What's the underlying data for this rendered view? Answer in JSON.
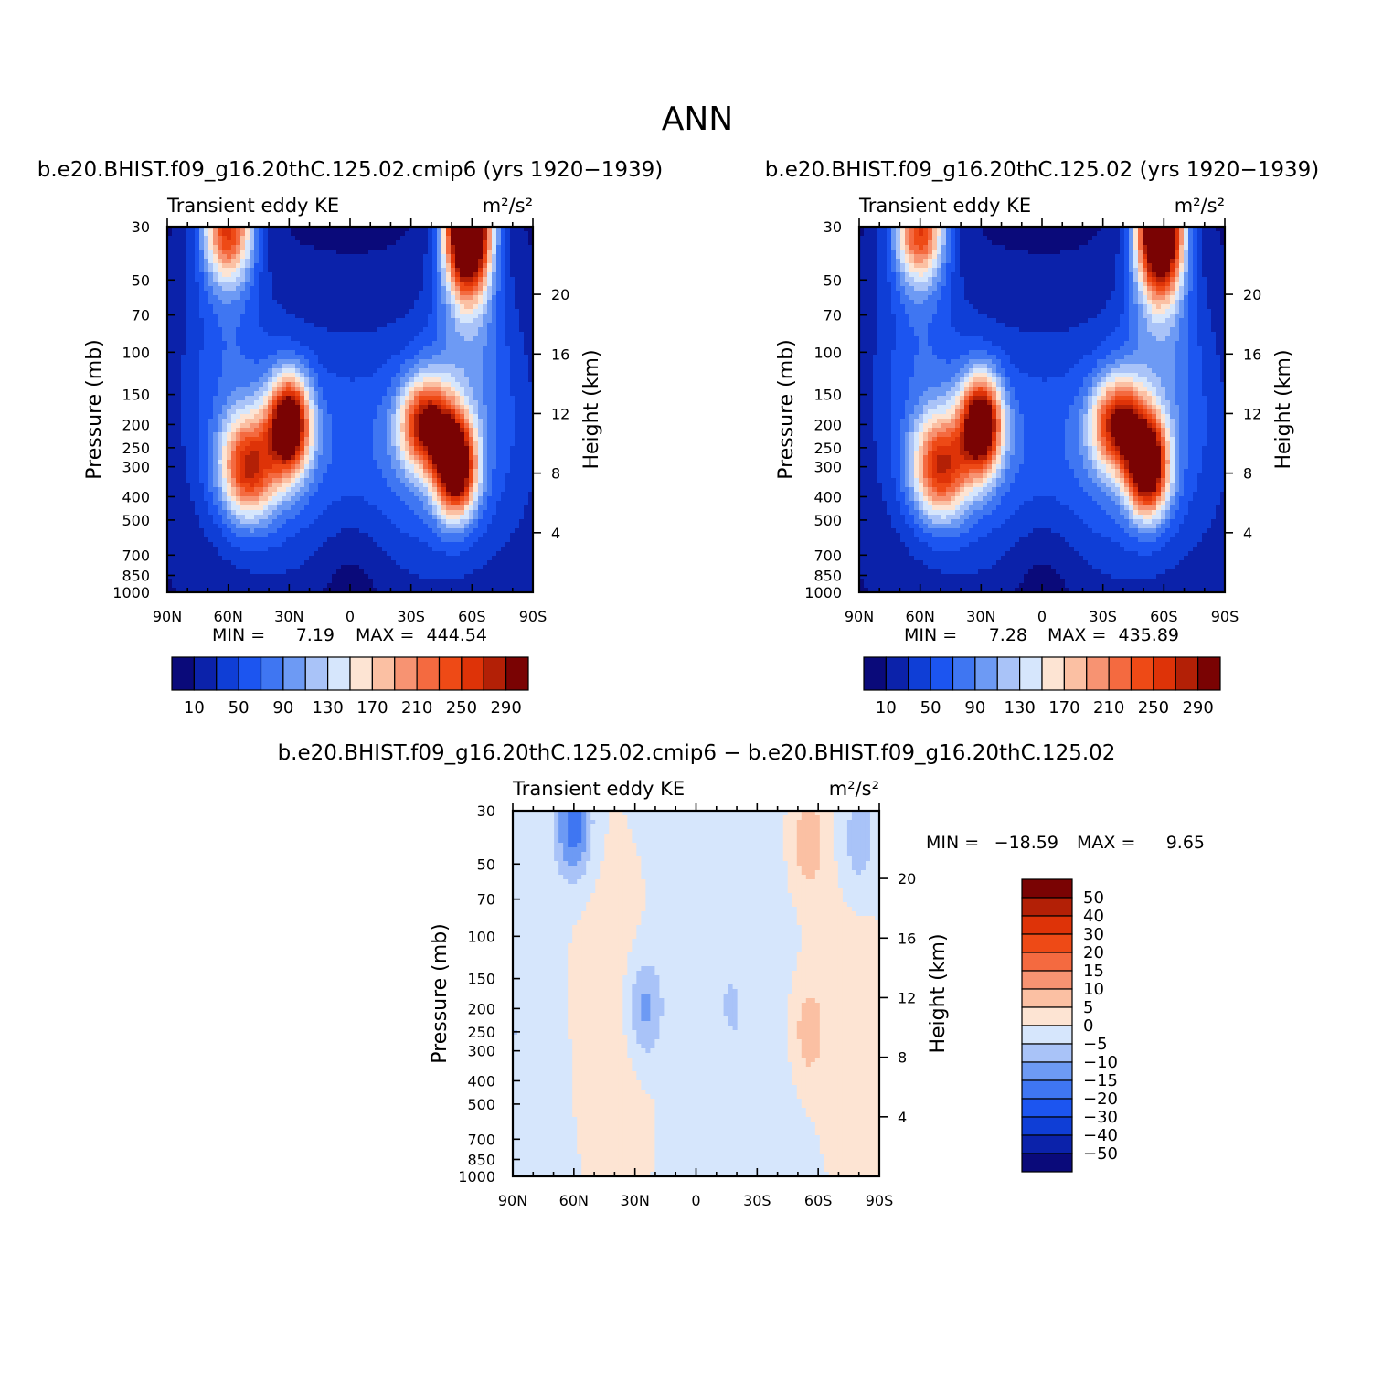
{
  "figure": {
    "title": "ANN"
  },
  "colors": {
    "abs_palette": [
      "#0a0a7a",
      "#0b22aa",
      "#0f3ed6",
      "#1c55f0",
      "#3f76f2",
      "#6d9af4",
      "#a9c3f8",
      "#d6e6fc",
      "#fde4d3",
      "#fbc0a3",
      "#f79372",
      "#f46a40",
      "#ee4a16",
      "#de3308",
      "#b32006",
      "#7a0303"
    ],
    "diff_palette": [
      "#0a0a7a",
      "#0b22aa",
      "#0f3ed6",
      "#1c55f0",
      "#3f76f2",
      "#6d9af4",
      "#a9c3f8",
      "#d6e6fc",
      "#fde4d3",
      "#fbc0a3",
      "#f79372",
      "#f46a40",
      "#ee4a16",
      "#de3308",
      "#b32006",
      "#7a0303"
    ]
  },
  "chart_data": [
    {
      "type": "heatmap",
      "title": "b.e20.BHIST.f09_g16.20thC.125.02.cmip6 (yrs 1920−1939)",
      "left_string": "Transient eddy KE",
      "units": "m²/s²",
      "ylabel": "Pressure (mb)",
      "y2label": "Height (km)",
      "x_ticks": [
        "90N",
        "60N",
        "30N",
        "0",
        "30S",
        "60S",
        "90S"
      ],
      "y_ticks": [
        30,
        50,
        70,
        100,
        150,
        200,
        250,
        300,
        400,
        500,
        700,
        850,
        1000
      ],
      "y2_ticks": [
        4,
        8,
        12,
        16,
        20
      ],
      "xlim": [
        90,
        -90
      ],
      "ylim": [
        1000,
        30
      ],
      "y_scale": "log",
      "min_label": "MIN =",
      "min_value": "7.19",
      "max_label": "MAX =",
      "max_value": "444.54",
      "colorbar_labels": [
        "10",
        "50",
        "90",
        "130",
        "170",
        "210",
        "250",
        "290"
      ],
      "levels": [
        10,
        30,
        50,
        70,
        90,
        110,
        130,
        150,
        170,
        190,
        210,
        230,
        250,
        270,
        290
      ],
      "features": [
        {
          "lat": 60,
          "p": 30,
          "peak": 240
        },
        {
          "lat": -58,
          "p": 30,
          "peak": 440
        },
        {
          "lat": 30,
          "p": 200,
          "peak": 300
        },
        {
          "lat": 50,
          "p": 300,
          "peak": 210
        },
        {
          "lat": -38,
          "p": 200,
          "peak": 230
        },
        {
          "lat": -52,
          "p": 300,
          "peak": 300
        }
      ]
    },
    {
      "type": "heatmap",
      "title": "b.e20.BHIST.f09_g16.20thC.125.02 (yrs 1920−1939)",
      "left_string": "Transient eddy KE",
      "units": "m²/s²",
      "ylabel": "Pressure (mb)",
      "y2label": "Height (km)",
      "x_ticks": [
        "90N",
        "60N",
        "30N",
        "0",
        "30S",
        "60S",
        "90S"
      ],
      "y_ticks": [
        30,
        50,
        70,
        100,
        150,
        200,
        250,
        300,
        400,
        500,
        700,
        850,
        1000
      ],
      "y2_ticks": [
        4,
        8,
        12,
        16,
        20
      ],
      "xlim": [
        90,
        -90
      ],
      "ylim": [
        1000,
        30
      ],
      "y_scale": "log",
      "min_label": "MIN =",
      "min_value": "7.28",
      "max_label": "MAX =",
      "max_value": "435.89",
      "colorbar_labels": [
        "10",
        "50",
        "90",
        "130",
        "170",
        "210",
        "250",
        "290"
      ],
      "levels": [
        10,
        30,
        50,
        70,
        90,
        110,
        130,
        150,
        170,
        190,
        210,
        230,
        250,
        270,
        290
      ],
      "features": [
        {
          "lat": 60,
          "p": 30,
          "peak": 235
        },
        {
          "lat": -58,
          "p": 30,
          "peak": 430
        },
        {
          "lat": 30,
          "p": 200,
          "peak": 295
        },
        {
          "lat": 50,
          "p": 300,
          "peak": 205
        },
        {
          "lat": -38,
          "p": 200,
          "peak": 225
        },
        {
          "lat": -52,
          "p": 300,
          "peak": 295
        }
      ]
    },
    {
      "type": "heatmap",
      "title": "b.e20.BHIST.f09_g16.20thC.125.02.cmip6 − b.e20.BHIST.f09_g16.20thC.125.02",
      "left_string": "Transient eddy KE",
      "units": "m²/s²",
      "ylabel": "Pressure (mb)",
      "y2label": "Height (km)",
      "x_ticks": [
        "90N",
        "60N",
        "30N",
        "0",
        "30S",
        "60S",
        "90S"
      ],
      "y_ticks": [
        30,
        50,
        70,
        100,
        150,
        200,
        250,
        300,
        400,
        500,
        700,
        850,
        1000
      ],
      "y2_ticks": [
        4,
        8,
        12,
        16,
        20
      ],
      "xlim": [
        90,
        -90
      ],
      "ylim": [
        1000,
        30
      ],
      "y_scale": "log",
      "min_label": "MIN =",
      "min_value": "−18.59",
      "max_label": "MAX =",
      "max_value": "9.65",
      "colorbar_labels": [
        "50",
        "40",
        "30",
        "20",
        "15",
        "10",
        "5",
        "0",
        "−5",
        "−10",
        "−15",
        "−20",
        "−30",
        "−40",
        "−50"
      ],
      "levels": [
        -50,
        -40,
        -30,
        -20,
        -15,
        -10,
        -5,
        0,
        5,
        10,
        15,
        20,
        30,
        40,
        50
      ],
      "features": [
        {
          "lat": 60,
          "p": 35,
          "value": -18
        },
        {
          "lat": 25,
          "p": 200,
          "value": -12
        },
        {
          "lat": -55,
          "p": 40,
          "value": 9
        },
        {
          "lat": -55,
          "p": 250,
          "value": 8
        },
        {
          "lat": -80,
          "p": 40,
          "value": -8
        },
        {
          "lat": -15,
          "p": 600,
          "value": 3
        },
        {
          "lat": 45,
          "p": 400,
          "value": 2
        }
      ]
    }
  ]
}
